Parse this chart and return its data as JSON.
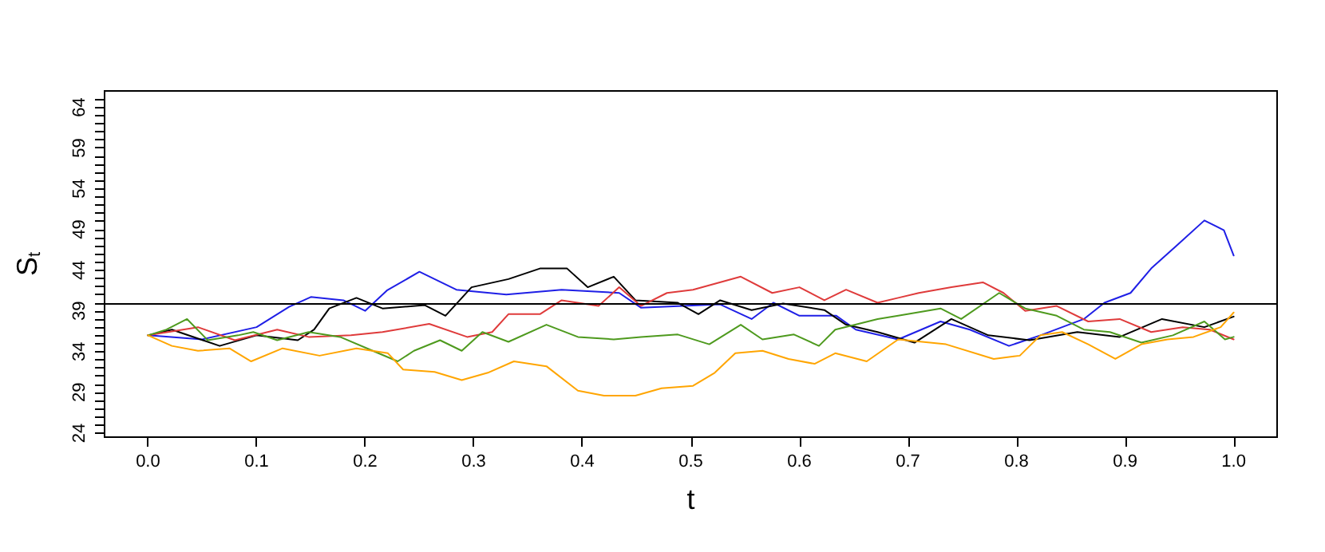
{
  "chart_data": {
    "type": "line",
    "xlabel": "t",
    "ylabel": "S$_{t}$",
    "xlim": [
      -0.04,
      1.04
    ],
    "ylim": [
      23.5,
      66
    ],
    "xticks": [
      {
        "value": 0,
        "label": "0.0"
      },
      {
        "value": 0.1,
        "label": "0.1"
      },
      {
        "value": 0.2,
        "label": "0.2"
      },
      {
        "value": 0.3,
        "label": "0.3"
      },
      {
        "value": 0.4,
        "label": "0.4"
      },
      {
        "value": 0.5,
        "label": "0.5"
      },
      {
        "value": 0.6,
        "label": "0.6"
      },
      {
        "value": 0.7,
        "label": "0.7"
      },
      {
        "value": 0.8,
        "label": "0.8"
      },
      {
        "value": 0.9,
        "label": "0.9"
      },
      {
        "value": 1,
        "label": "1.0"
      }
    ],
    "yticks": [
      24,
      {
        "value": 25,
        "label": null
      },
      {
        "value": 26,
        "label": null
      },
      {
        "value": 27,
        "label": null
      },
      {
        "value": 28,
        "label": null
      },
      29,
      {
        "value": 30,
        "label": null
      },
      {
        "value": 31,
        "label": null
      },
      {
        "value": 32,
        "label": null
      },
      {
        "value": 33,
        "label": null
      },
      34,
      {
        "value": 35,
        "label": null
      },
      {
        "value": 36,
        "label": null
      },
      {
        "value": 37,
        "label": null
      },
      {
        "value": 38,
        "label": null
      },
      39,
      {
        "value": 40,
        "label": null
      },
      {
        "value": 41,
        "label": null
      },
      {
        "value": 42,
        "label": null
      },
      {
        "value": 43,
        "label": null
      },
      44,
      {
        "value": 45,
        "label": null
      },
      {
        "value": 46,
        "label": null
      },
      {
        "value": 47,
        "label": null
      },
      {
        "value": 48,
        "label": null
      },
      49,
      {
        "value": 50,
        "label": null
      },
      {
        "value": 51,
        "label": null
      },
      {
        "value": 52,
        "label": null
      },
      {
        "value": 53,
        "label": null
      },
      54,
      {
        "value": 55,
        "label": null
      },
      {
        "value": 56,
        "label": null
      },
      {
        "value": 57,
        "label": null
      },
      {
        "value": 58,
        "label": null
      },
      59,
      {
        "value": 60,
        "label": null
      },
      {
        "value": 61,
        "label": null
      },
      {
        "value": 62,
        "label": null
      },
      {
        "value": 63,
        "label": null
      },
      64,
      {
        "value": 65,
        "label": null
      }
    ],
    "grid": false,
    "marker": "none",
    "line_style": "solid",
    "ref_lines": [
      {
        "axis": "y",
        "value": 40,
        "label": null,
        "color": "#000000"
      }
    ],
    "series": [
      {
        "color": "#1f1fe6",
        "x": [
          0,
          0.05,
          0.1,
          0.13,
          0.15,
          0.18,
          0.2,
          0.22,
          0.25,
          0.284,
          0.33,
          0.381,
          0.434,
          0.454,
          0.527,
          0.556,
          0.576,
          0.6,
          0.634,
          0.652,
          0.691,
          0.73,
          0.757,
          0.793,
          0.822,
          0.862,
          0.881,
          0.905,
          0.924,
          0.949,
          0.973,
          0.991,
          1.0
        ],
        "values": [
          36,
          35.5,
          37,
          39.5,
          40.7,
          40.3,
          39,
          41.5,
          43.8,
          41.6,
          41,
          41.6,
          41.2,
          39.4,
          39.8,
          38,
          40,
          38.4,
          38.4,
          36.7,
          35.5,
          37.7,
          36.7,
          34.7,
          36,
          38,
          40,
          41.2,
          44.2,
          47.2,
          50.1,
          48.9,
          45.8
        ]
      },
      {
        "color": "#000000",
        "x": [
          0,
          0.022,
          0.066,
          0.1,
          0.138,
          0.153,
          0.167,
          0.192,
          0.216,
          0.255,
          0.274,
          0.298,
          0.332,
          0.361,
          0.386,
          0.405,
          0.429,
          0.449,
          0.488,
          0.507,
          0.527,
          0.556,
          0.585,
          0.623,
          0.643,
          0.672,
          0.706,
          0.74,
          0.774,
          0.812,
          0.856,
          0.895,
          0.934,
          0.973,
          1.0
        ],
        "values": [
          36,
          36.7,
          34.7,
          36,
          35.4,
          36.7,
          39.3,
          40.6,
          39.3,
          39.7,
          38.4,
          41.9,
          42.9,
          44.2,
          44.2,
          41.9,
          43.2,
          40.3,
          40,
          38.6,
          40.3,
          39.1,
          39.9,
          39.1,
          37.3,
          36.4,
          35.1,
          38,
          36,
          35.4,
          36.4,
          35.8,
          38,
          37,
          38.3
        ]
      },
      {
        "color": "#df3b3b",
        "x": [
          0,
          0.046,
          0.08,
          0.119,
          0.148,
          0.187,
          0.216,
          0.259,
          0.294,
          0.317,
          0.332,
          0.361,
          0.381,
          0.415,
          0.434,
          0.454,
          0.478,
          0.502,
          0.546,
          0.575,
          0.6,
          0.623,
          0.643,
          0.672,
          0.691,
          0.71,
          0.74,
          0.769,
          0.788,
          0.808,
          0.837,
          0.866,
          0.895,
          0.924,
          0.953,
          0.978,
          1.0
        ],
        "values": [
          36,
          37,
          35.4,
          36.7,
          35.8,
          36,
          36.4,
          37.4,
          35.8,
          36.4,
          38.6,
          38.6,
          40.3,
          39.6,
          41.9,
          39.6,
          41.2,
          41.6,
          43.2,
          41.2,
          41.9,
          40.3,
          41.6,
          40,
          40.6,
          41.2,
          41.9,
          42.5,
          41.2,
          39,
          39.6,
          37.7,
          38,
          36.4,
          37,
          36.7,
          35.5
        ]
      },
      {
        "color": "#4e9a1e",
        "x": [
          0,
          0.017,
          0.036,
          0.055,
          0.083,
          0.097,
          0.119,
          0.148,
          0.177,
          0.207,
          0.23,
          0.245,
          0.269,
          0.289,
          0.308,
          0.332,
          0.367,
          0.396,
          0.429,
          0.454,
          0.488,
          0.517,
          0.546,
          0.566,
          0.595,
          0.618,
          0.633,
          0.672,
          0.691,
          0.73,
          0.749,
          0.784,
          0.808,
          0.837,
          0.862,
          0.886,
          0.915,
          0.944,
          0.973,
          0.992,
          1.0
        ],
        "values": [
          36,
          36.7,
          38,
          35.4,
          36,
          36.4,
          35.4,
          36.4,
          35.8,
          34.1,
          32.8,
          34.1,
          35.4,
          34.1,
          36.4,
          35.2,
          37.3,
          35.8,
          35.5,
          35.8,
          36.1,
          34.9,
          37.3,
          35.5,
          36.1,
          34.7,
          36.7,
          38,
          38.4,
          39.3,
          38,
          41.2,
          39.3,
          38.4,
          36.7,
          36.4,
          35.1,
          36,
          37.7,
          35.5,
          35.8
        ]
      },
      {
        "color": "#ffa500",
        "x": [
          0,
          0.022,
          0.046,
          0.075,
          0.095,
          0.124,
          0.158,
          0.192,
          0.221,
          0.235,
          0.264,
          0.289,
          0.313,
          0.337,
          0.367,
          0.396,
          0.42,
          0.449,
          0.473,
          0.502,
          0.522,
          0.541,
          0.566,
          0.59,
          0.614,
          0.633,
          0.662,
          0.691,
          0.735,
          0.779,
          0.803,
          0.822,
          0.842,
          0.866,
          0.891,
          0.915,
          0.939,
          0.963,
          0.988,
          1.0
        ],
        "values": [
          36,
          34.7,
          34.1,
          34.4,
          32.8,
          34.4,
          33.5,
          34.4,
          33.8,
          31.8,
          31.5,
          30.5,
          31.4,
          32.8,
          32.2,
          29.2,
          28.6,
          28.6,
          29.5,
          29.8,
          31.4,
          33.8,
          34.1,
          33.1,
          32.5,
          33.8,
          32.8,
          35.5,
          34.9,
          33.1,
          33.5,
          36,
          36.4,
          34.9,
          33.1,
          34.9,
          35.5,
          35.8,
          37,
          38.8
        ]
      }
    ]
  }
}
